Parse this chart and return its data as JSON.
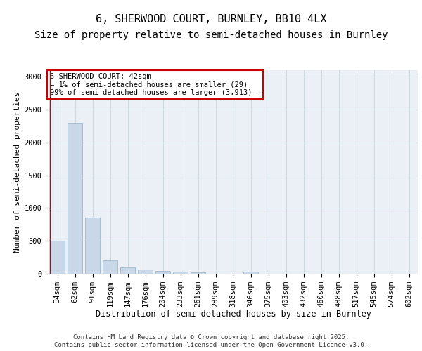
{
  "title1": "6, SHERWOOD COURT, BURNLEY, BB10 4LX",
  "title2": "Size of property relative to semi-detached houses in Burnley",
  "xlabel": "Distribution of semi-detached houses by size in Burnley",
  "ylabel": "Number of semi-detached properties",
  "categories": [
    "34sqm",
    "62sqm",
    "91sqm",
    "119sqm",
    "147sqm",
    "176sqm",
    "204sqm",
    "233sqm",
    "261sqm",
    "289sqm",
    "318sqm",
    "346sqm",
    "375sqm",
    "403sqm",
    "432sqm",
    "460sqm",
    "488sqm",
    "517sqm",
    "545sqm",
    "574sqm",
    "602sqm"
  ],
  "values": [
    500,
    2300,
    850,
    200,
    100,
    60,
    40,
    30,
    20,
    5,
    0,
    30,
    0,
    0,
    0,
    0,
    0,
    0,
    0,
    0,
    0
  ],
  "bar_color": "#c8d8e8",
  "bar_edgecolor": "#a0b8cc",
  "annotation_box_text": "6 SHERWOOD COURT: 42sqm\n← 1% of semi-detached houses are smaller (29)\n99% of semi-detached houses are larger (3,913) →",
  "annotation_box_color": "#cc0000",
  "vline_color": "#cc0000",
  "grid_color": "#c8d4de",
  "background_color": "#eaf0f6",
  "footer_text": "Contains HM Land Registry data © Crown copyright and database right 2025.\nContains public sector information licensed under the Open Government Licence v3.0.",
  "ylim": [
    0,
    3100
  ],
  "yticks": [
    0,
    500,
    1000,
    1500,
    2000,
    2500,
    3000
  ],
  "title1_fontsize": 11,
  "title2_fontsize": 10,
  "xlabel_fontsize": 8.5,
  "ylabel_fontsize": 8,
  "tick_fontsize": 7.5,
  "annotation_fontsize": 7.5,
  "footer_fontsize": 6.5
}
